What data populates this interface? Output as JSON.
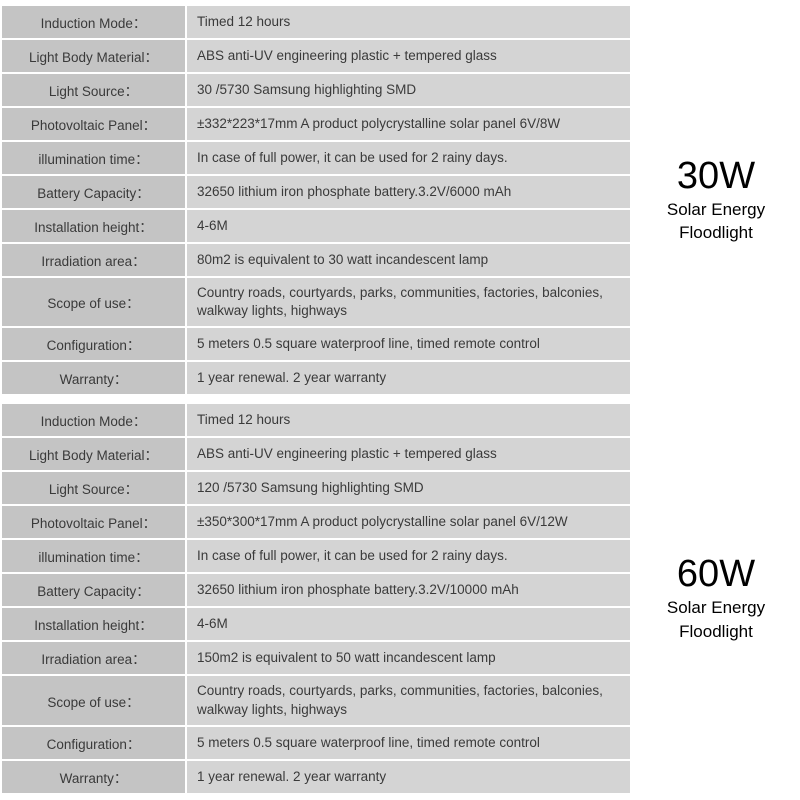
{
  "colors": {
    "label_bg": "#c4c4c4",
    "value_bg": "#d4d4d4",
    "border": "#ffffff",
    "text": "#3a3a3a",
    "side_text": "#000000"
  },
  "typography": {
    "cell_fontsize": 13.5,
    "watt_fontsize": 38,
    "sub_fontsize": 17
  },
  "sections": [
    {
      "watt": "30W",
      "subtitle1": "Solar Energy",
      "subtitle2": "Floodlight",
      "rows": [
        {
          "label": "Induction Mode：",
          "value": "Timed 12 hours"
        },
        {
          "label": "Light Body Material：",
          "value": "ABS anti-UV engineering plastic + tempered glass"
        },
        {
          "label": "Light Source：",
          "value": "30 /5730 Samsung highlighting SMD"
        },
        {
          "label": "Photovoltaic Panel：",
          "value": "±332*223*17mm  A product polycrystalline solar panel 6V/8W"
        },
        {
          "label": "illumination time：",
          "value": "In case of full power, it can be used for 2 rainy days."
        },
        {
          "label": "Battery Capacity：",
          "value": "32650 lithium iron phosphate battery.3.2V/6000 mAh"
        },
        {
          "label": "Installation height：",
          "value": "4-6M"
        },
        {
          "label": "Irradiation area：",
          "value": "80m2 is equivalent to 30 watt incandescent lamp"
        },
        {
          "label": "Scope of use：",
          "value": "Country roads, courtyards, parks, communities, factories, balconies, walkway lights, highways",
          "tall": true
        },
        {
          "label": "Configuration：",
          "value": "5 meters 0.5 square waterproof line, timed remote control"
        },
        {
          "label": "Warranty：",
          "value": "1 year renewal. 2 year warranty"
        }
      ]
    },
    {
      "watt": "60W",
      "subtitle1": "Solar Energy",
      "subtitle2": "Floodlight",
      "rows": [
        {
          "label": "Induction Mode：",
          "value": "Timed 12 hours"
        },
        {
          "label": "Light Body Material：",
          "value": "ABS anti-UV engineering plastic + tempered glass"
        },
        {
          "label": "Light Source：",
          "value": "120 /5730 Samsung highlighting SMD"
        },
        {
          "label": "Photovoltaic Panel：",
          "value": "±350*300*17mm A product polycrystalline solar panel 6V/12W"
        },
        {
          "label": "illumination time：",
          "value": "In case of full power, it can be used for 2 rainy days."
        },
        {
          "label": "Battery Capacity：",
          "value": "32650 lithium iron phosphate battery.3.2V/10000 mAh"
        },
        {
          "label": "Installation height：",
          "value": "4-6M"
        },
        {
          "label": "Irradiation area：",
          "value": "150m2 is equivalent to 50 watt incandescent lamp"
        },
        {
          "label": "Scope of use：",
          "value": "Country roads, courtyards, parks, communities, factories, balconies, walkway lights, highways",
          "tall": true
        },
        {
          "label": "Configuration：",
          "value": "5 meters 0.5 square waterproof line, timed remote control"
        },
        {
          "label": "Warranty：",
          "value": "1 year renewal. 2 year warranty"
        }
      ]
    }
  ]
}
